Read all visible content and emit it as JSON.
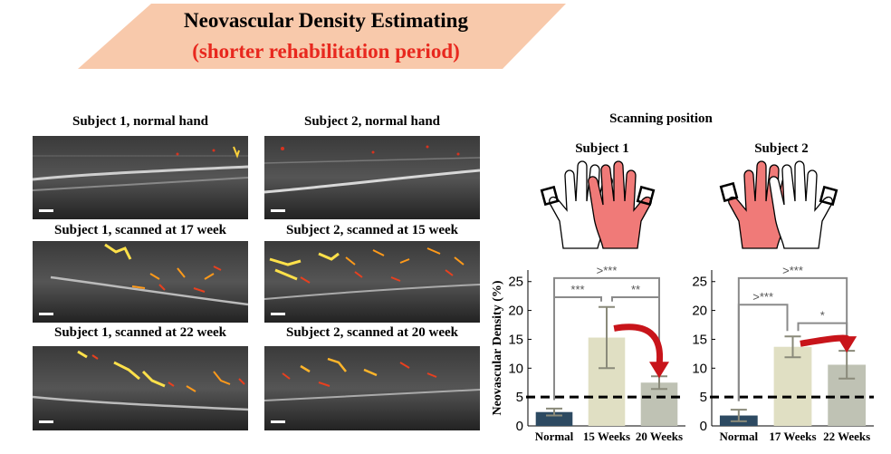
{
  "title": {
    "line1": "Neovascular Density Estimating",
    "line2": "(shorter rehabilitation period)"
  },
  "colors": {
    "banner": "#f8c9ab",
    "title_accent": "#e8281e",
    "bar_normal": "#2d4a62",
    "bar_mid": "#e0dfc3",
    "bar_late": "#bfc2b4",
    "arrow": "#c8141a",
    "hand_highlight": "#f07a78"
  },
  "panels": {
    "s1_normal": "Subject 1, normal hand",
    "s2_normal": "Subject 2, normal hand",
    "s1_17": "Subject 1, scanned at 17 week",
    "s2_15": "Subject 2, scanned at 15 week",
    "s1_22": "Subject 1, scanned at 22 week",
    "s2_20": "Subject 2, scanned at 20 week"
  },
  "scanning": {
    "heading": "Scanning  position",
    "subject1": "Subject 1",
    "subject2": "Subject 2"
  },
  "chart_data": [
    {
      "type": "bar",
      "ylabel": "Neovascular Density (%)",
      "ylim": [
        0,
        27
      ],
      "yticks": [
        "0",
        "5",
        "10",
        "15",
        "20",
        "25"
      ],
      "categories": [
        "Normal",
        "15 Weeks",
        "20 Weeks"
      ],
      "values": [
        2.4,
        15.3,
        7.5
      ],
      "errors": [
        0.6,
        5.3,
        1.1
      ],
      "threshold": 5,
      "significance": [
        ">***",
        "***",
        "**"
      ]
    },
    {
      "type": "bar",
      "ylabel": "",
      "ylim": [
        0,
        27
      ],
      "yticks": [
        "0",
        "5",
        "10",
        "15",
        "20",
        "25"
      ],
      "categories": [
        "Normal",
        "17 Weeks",
        "22 Weeks"
      ],
      "values": [
        1.8,
        13.7,
        10.6
      ],
      "errors": [
        1.0,
        1.8,
        2.4
      ],
      "threshold": 5,
      "significance": [
        ">***",
        ">***",
        "*"
      ]
    }
  ]
}
